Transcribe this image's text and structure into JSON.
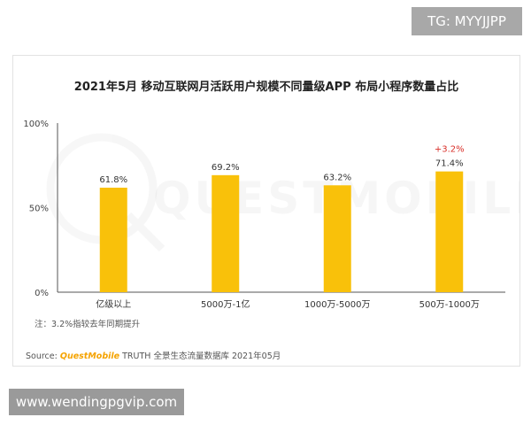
{
  "header": {
    "badge": "TG: MYYJJPP"
  },
  "footer": {
    "url_badge": "www.wendingpgvip.com"
  },
  "colors": {
    "bar": "#f9c10a",
    "highlight": "#d9302a"
  },
  "chart_data": {
    "type": "bar",
    "title": "2021年5月 移动互联网月活跃用户规模不同量级APP 布局小程序数量占比",
    "categories": [
      "亿级以上",
      "5000万-1亿",
      "1000万-5000万",
      "500万-1000万"
    ],
    "values": [
      61.8,
      69.2,
      63.2,
      71.4
    ],
    "value_labels": [
      "61.8%",
      "69.2%",
      "63.2%",
      "71.4%"
    ],
    "annotations": [
      {
        "category_index": 3,
        "text": "+3.2%"
      }
    ],
    "yticks": [
      "0%",
      "50%",
      "100%"
    ],
    "ylim": [
      0,
      100
    ],
    "grid": false,
    "watermark": "QUESTMOBILE",
    "note": "注：3.2%指较去年同期提升",
    "source_prefix": "Source:",
    "source_brand": "QuestMobile",
    "source_rest": "TRUTH 全景生态流量数据库 2021年05月"
  }
}
